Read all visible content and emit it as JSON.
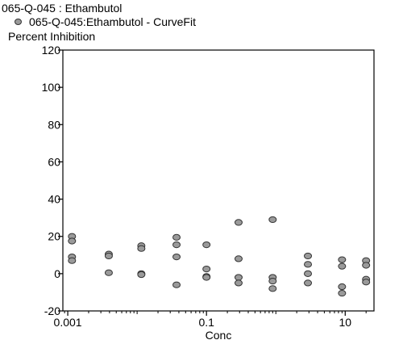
{
  "chart_data": {
    "type": "scatter",
    "title": "065-Q-045  : Ethambutol",
    "legend": "065-Q-045:Ethambutol - CurveFit",
    "ylabel": "Percent Inhibition",
    "xlabel": "Conc",
    "x_scale": "log",
    "xlim": [
      0.00085,
      26
    ],
    "ylim": [
      -20,
      120
    ],
    "x_ticks": [
      0.001,
      0.1,
      10
    ],
    "x_tick_labels": [
      "0.001",
      "0.1",
      "10"
    ],
    "y_ticks": [
      -20,
      0,
      20,
      40,
      60,
      80,
      100,
      120
    ],
    "y_tick_labels": [
      "-20",
      "0",
      "20",
      "40",
      "60",
      "80",
      "100",
      "120"
    ],
    "grid": false,
    "marker_color": "#9a9a9a",
    "series": [
      {
        "points": [
          [
            0.00115,
            20
          ],
          [
            0.00115,
            17.5
          ],
          [
            0.00115,
            9
          ],
          [
            0.00115,
            7
          ],
          [
            0.0039,
            10.5
          ],
          [
            0.0039,
            9.5
          ],
          [
            0.0039,
            0.5
          ],
          [
            0.0115,
            15
          ],
          [
            0.0115,
            13.5
          ],
          [
            0.0115,
            0
          ],
          [
            0.0115,
            -0.5
          ],
          [
            0.037,
            19.5
          ],
          [
            0.037,
            15.5
          ],
          [
            0.037,
            9
          ],
          [
            0.037,
            -6
          ],
          [
            0.1,
            15.5
          ],
          [
            0.1,
            2.5
          ],
          [
            0.1,
            -1.5
          ],
          [
            0.1,
            -2
          ],
          [
            0.29,
            27.5
          ],
          [
            0.29,
            8
          ],
          [
            0.29,
            -2
          ],
          [
            0.29,
            -5
          ],
          [
            0.9,
            29
          ],
          [
            0.9,
            -2
          ],
          [
            0.9,
            -4
          ],
          [
            0.9,
            -8
          ],
          [
            2.9,
            9.5
          ],
          [
            2.9,
            5
          ],
          [
            2.9,
            0
          ],
          [
            2.9,
            -5
          ],
          [
            9,
            7.5
          ],
          [
            9,
            4
          ],
          [
            9,
            -7
          ],
          [
            9,
            -10.5
          ],
          [
            20,
            7
          ],
          [
            20,
            4.5
          ],
          [
            20,
            -3
          ],
          [
            20,
            -4.5
          ]
        ]
      }
    ]
  }
}
